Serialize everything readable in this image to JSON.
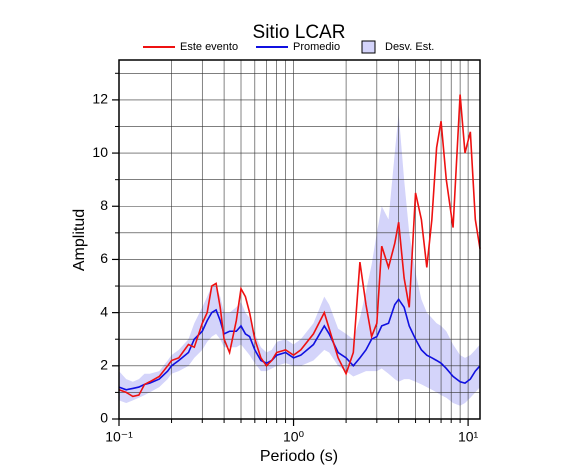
{
  "chart_data": {
    "type": "line",
    "title": "Sitio LCAR",
    "xlabel": "Periodo (s)",
    "ylabel": "Amplitud",
    "xscale": "log",
    "grid": true,
    "legend": "top",
    "xlim": [
      0.1,
      11.7
    ],
    "ylim": [
      0,
      13.5
    ],
    "xticks": [
      {
        "value": 0.1,
        "label": "10⁻¹"
      },
      {
        "value": 1,
        "label": "10⁰"
      },
      {
        "value": 10,
        "label": "10¹"
      }
    ],
    "xminor": [
      0.2,
      0.3,
      0.4,
      0.5,
      0.6,
      0.7,
      0.8,
      0.9,
      2,
      3,
      4,
      5,
      6,
      7,
      8,
      9
    ],
    "yticks": [
      0,
      2,
      4,
      6,
      8,
      10,
      12
    ],
    "yminor": [
      1,
      3,
      5,
      7,
      9,
      11,
      13
    ],
    "x": [
      0.1,
      0.11,
      0.12,
      0.13,
      0.14,
      0.15,
      0.17,
      0.19,
      0.2,
      0.22,
      0.25,
      0.27,
      0.3,
      0.32,
      0.34,
      0.36,
      0.38,
      0.4,
      0.43,
      0.47,
      0.5,
      0.53,
      0.56,
      0.6,
      0.65,
      0.7,
      0.75,
      0.8,
      0.9,
      1.0,
      1.1,
      1.3,
      1.5,
      1.6,
      1.8,
      2.0,
      2.2,
      2.4,
      2.6,
      2.8,
      3.0,
      3.2,
      3.5,
      3.8,
      4.0,
      4.3,
      4.6,
      5.0,
      5.4,
      5.8,
      6.2,
      6.6,
      7.0,
      7.5,
      8.2,
      9.0,
      9.6,
      10.3,
      11.0,
      11.7
    ],
    "series": [
      {
        "name": "Desv. Est.",
        "kind": "band",
        "color": "#d4d4fa",
        "lower": [
          0.7,
          0.6,
          0.7,
          0.8,
          0.9,
          1.0,
          1.2,
          1.5,
          1.7,
          1.8,
          2.0,
          2.3,
          2.6,
          2.9,
          3.1,
          3.2,
          3.0,
          2.7,
          2.7,
          2.7,
          2.8,
          2.6,
          2.4,
          2.1,
          1.8,
          1.8,
          1.9,
          2.0,
          2.1,
          2.0,
          2.0,
          2.2,
          2.6,
          2.5,
          2.0,
          1.8,
          1.6,
          1.7,
          1.8,
          1.8,
          1.8,
          1.9,
          1.7,
          1.5,
          1.4,
          1.5,
          1.5,
          1.4,
          1.3,
          1.2,
          1.1,
          1.0,
          0.9,
          0.8,
          0.6,
          0.5,
          0.6,
          0.8,
          1.0,
          1.2
        ],
        "upper": [
          1.8,
          1.5,
          1.4,
          1.5,
          1.7,
          1.7,
          1.8,
          2.2,
          2.4,
          2.6,
          3.0,
          3.6,
          4.2,
          4.6,
          5.0,
          5.0,
          4.6,
          4.0,
          4.0,
          4.2,
          4.4,
          4.0,
          3.8,
          3.2,
          2.7,
          2.5,
          2.6,
          2.9,
          3.0,
          2.8,
          3.0,
          3.6,
          4.6,
          4.3,
          3.4,
          3.2,
          3.0,
          3.8,
          4.8,
          5.8,
          7.0,
          8.0,
          7.5,
          10.0,
          11.5,
          9.0,
          7.0,
          5.5,
          4.5,
          4.0,
          3.8,
          3.6,
          3.5,
          3.3,
          2.8,
          2.4,
          2.3,
          2.4,
          2.6,
          2.8
        ]
      },
      {
        "name": "Promedio",
        "color": "#1010e0",
        "values": [
          1.2,
          1.1,
          1.15,
          1.2,
          1.3,
          1.35,
          1.5,
          1.8,
          2.0,
          2.2,
          2.5,
          3.0,
          3.3,
          3.7,
          4.0,
          4.1,
          3.7,
          3.2,
          3.3,
          3.3,
          3.5,
          3.2,
          3.1,
          2.6,
          2.2,
          2.1,
          2.2,
          2.4,
          2.5,
          2.3,
          2.4,
          2.8,
          3.5,
          3.2,
          2.5,
          2.3,
          2.0,
          2.3,
          2.6,
          3.0,
          3.1,
          3.5,
          3.6,
          4.3,
          4.5,
          4.2,
          3.5,
          3.0,
          2.6,
          2.4,
          2.3,
          2.2,
          2.1,
          1.9,
          1.6,
          1.4,
          1.35,
          1.5,
          1.8,
          2.0
        ]
      },
      {
        "name": "Este evento",
        "color": "#ee1111",
        "values": [
          1.1,
          1.0,
          0.85,
          0.9,
          1.3,
          1.4,
          1.6,
          2.0,
          2.2,
          2.3,
          2.8,
          2.7,
          3.6,
          4.0,
          5.0,
          5.1,
          4.2,
          3.0,
          2.5,
          3.7,
          4.9,
          4.6,
          4.0,
          3.0,
          2.3,
          2.0,
          2.2,
          2.5,
          2.6,
          2.4,
          2.6,
          3.2,
          4.0,
          3.4,
          2.3,
          1.7,
          2.5,
          5.9,
          4.3,
          3.1,
          3.6,
          6.5,
          5.7,
          6.6,
          7.4,
          5.3,
          4.2,
          8.5,
          7.5,
          5.7,
          7.5,
          10.2,
          11.2,
          9.0,
          7.2,
          12.2,
          10.0,
          10.8,
          7.5,
          6.4
        ]
      }
    ]
  }
}
